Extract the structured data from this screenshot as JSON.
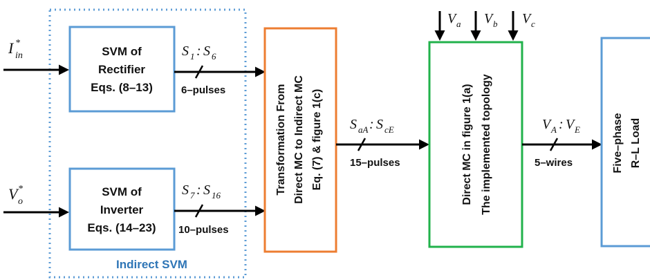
{
  "inputs": {
    "current_ref": "I*in",
    "voltage_ref": "V*o"
  },
  "indirect_svm": {
    "label": "Indirect SVM",
    "rectifier": {
      "line1": "SVM of",
      "line2": "Rectifier",
      "line3": "Eqs. (8–13)"
    },
    "inverter": {
      "line1": "SVM of",
      "line2": "Inverter",
      "line3": "Eqs. (14–23)"
    }
  },
  "signals": {
    "rect_out": {
      "label": "S1 : S6",
      "pulses": "6–pulses"
    },
    "inv_out": {
      "label": "S7 : S16",
      "pulses": "10–pulses"
    },
    "transform_out": {
      "label": "SaA : ScE",
      "pulses": "15–pulses"
    },
    "mc_out": {
      "label": "VA : VE",
      "wires": "5–wires"
    }
  },
  "transformation": {
    "line1": "Transformation From",
    "line2": "Direct MC to Indirect MC",
    "line3": "Eq. (7) & figure 1(c)"
  },
  "direct_mc": {
    "line1": "Direct MC in figure 1(a)",
    "line2": "The implemented topology"
  },
  "supply": {
    "va": "Va",
    "vb": "Vb",
    "vc": "Vc"
  },
  "load": {
    "line1": "Five–phase",
    "line2": "R–L Load"
  },
  "colors": {
    "blue_box": "#5b9bd5",
    "orange_box": "#ed7d31",
    "green_box": "#21b24b",
    "dotted": "#5b9bd5",
    "svm_label": "#2e75b6"
  }
}
